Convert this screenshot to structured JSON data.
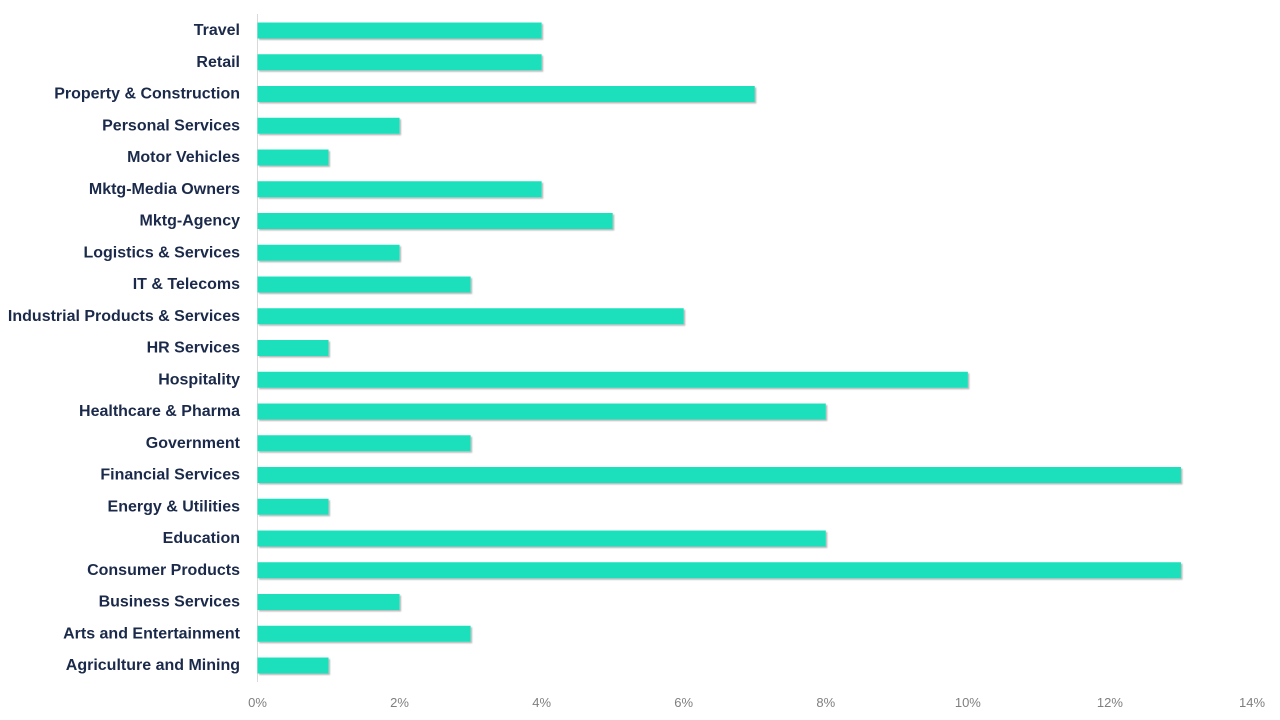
{
  "chart_data": {
    "type": "bar",
    "orientation": "horizontal",
    "categories": [
      "Travel",
      "Retail",
      "Property & Construction",
      "Personal Services",
      "Motor Vehicles",
      "Mktg-Media Owners",
      "Mktg-Agency",
      "Logistics & Services",
      "IT & Telecoms",
      "Industrial Products & Services",
      "HR Services",
      "Hospitality",
      "Healthcare & Pharma",
      "Government",
      "Financial Services",
      "Energy & Utilities",
      "Education",
      "Consumer Products",
      "Business Services",
      "Arts and Entertainment",
      "Agriculture and Mining"
    ],
    "values": [
      4,
      4,
      7,
      2,
      1,
      4,
      5,
      2,
      3,
      6,
      1,
      10,
      8,
      3,
      13,
      1,
      8,
      13,
      2,
      3,
      1
    ],
    "unit": "%",
    "xlim": [
      0,
      14
    ],
    "x_ticks": [
      "0%",
      "2%",
      "4%",
      "6%",
      "8%",
      "10%",
      "12%",
      "14%"
    ],
    "title": "",
    "xlabel": "",
    "ylabel": "",
    "grid": false,
    "legend": "none",
    "bar_color": "#1de0bc",
    "label_color": "#1b2a4a",
    "tick_color": "#7f7f7f"
  }
}
